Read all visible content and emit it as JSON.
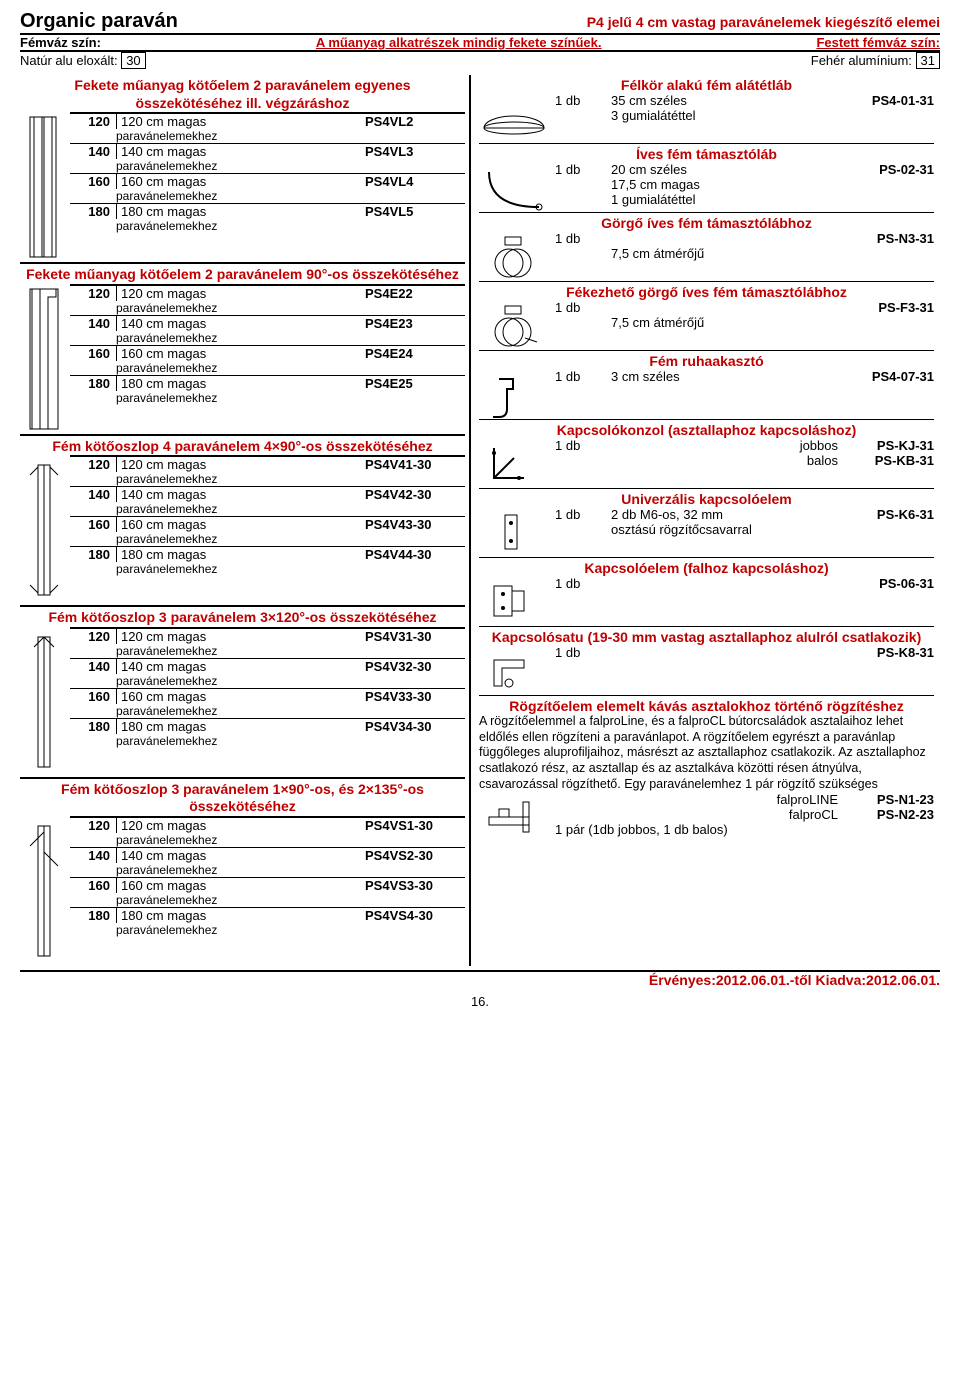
{
  "header": {
    "title": "Organic paraván",
    "subtitle_right": "P4 jelű 4 cm vastag paravánelemek kiegészítő elemei",
    "frame_color_label": "Fémváz szín:",
    "mid_note": "A műanyag alkatrészek mindig fekete színűek.",
    "painted_label": "Festett fémváz szín:",
    "natural_label": "Natúr alu eloxált:",
    "natural_code": "30",
    "white_label": "Fehér alumínium:",
    "white_code": "31"
  },
  "colors": {
    "accent": "#c00000",
    "text": "#000000"
  },
  "p_sub": "paravánelemekhez",
  "sections": {
    "s1": {
      "title": "Fekete műanyag kötőelem 2 paravánelem egyenes összekötéséhez ill. végzáráshoz",
      "rows": [
        {
          "h": "120",
          "d": "120 cm magas",
          "c": "PS4VL2"
        },
        {
          "h": "140",
          "d": "140 cm magas",
          "c": "PS4VL3"
        },
        {
          "h": "160",
          "d": "160 cm magas",
          "c": "PS4VL4"
        },
        {
          "h": "180",
          "d": "180 cm magas",
          "c": "PS4VL5"
        }
      ]
    },
    "s2": {
      "title": "Fekete műanyag kötőelem 2 paravánelem 90°-os összekötéséhez",
      "rows": [
        {
          "h": "120",
          "d": "120 cm magas",
          "c": "PS4E22"
        },
        {
          "h": "140",
          "d": "140 cm magas",
          "c": "PS4E23"
        },
        {
          "h": "160",
          "d": "160 cm magas",
          "c": "PS4E24"
        },
        {
          "h": "180",
          "d": "180 cm magas",
          "c": "PS4E25"
        }
      ]
    },
    "s3": {
      "title": "Fém kötőoszlop 4 paravánelem 4×90°-os összekötéséhez",
      "rows": [
        {
          "h": "120",
          "d": "120 cm magas",
          "c": "PS4V41-30"
        },
        {
          "h": "140",
          "d": "140 cm magas",
          "c": "PS4V42-30"
        },
        {
          "h": "160",
          "d": "160 cm magas",
          "c": "PS4V43-30"
        },
        {
          "h": "180",
          "d": "180 cm magas",
          "c": "PS4V44-30"
        }
      ]
    },
    "s4": {
      "title": "Fém kötőoszlop 3 paravánelem 3×120°-os összekötéséhez",
      "rows": [
        {
          "h": "120",
          "d": "120 cm magas",
          "c": "PS4V31-30"
        },
        {
          "h": "140",
          "d": "140 cm magas",
          "c": "PS4V32-30"
        },
        {
          "h": "160",
          "d": "160 cm magas",
          "c": "PS4V33-30"
        },
        {
          "h": "180",
          "d": "180 cm magas",
          "c": "PS4V34-30"
        }
      ]
    },
    "s5": {
      "title": "Fém kötőoszlop 3 paravánelem 1×90°-os, és 2×135°-os összekötéséhez",
      "rows": [
        {
          "h": "120",
          "d": "120 cm magas",
          "c": "PS4VS1-30"
        },
        {
          "h": "140",
          "d": "140 cm magas",
          "c": "PS4VS2-30"
        },
        {
          "h": "160",
          "d": "160 cm magas",
          "c": "PS4VS3-30"
        },
        {
          "h": "180",
          "d": "180 cm magas",
          "c": "PS4VS4-30"
        }
      ]
    }
  },
  "right": {
    "r1": {
      "title": "Félkör alakú fém alátétláb",
      "q": "1 db",
      "d": "35 cm széles",
      "d2": "3 gumialátéttel",
      "c": "PS4-01-31"
    },
    "r2": {
      "title": "Íves fém támasztóláb",
      "q": "1 db",
      "d": "20 cm széles",
      "d2": "17,5 cm magas",
      "d3": "1 gumialátéttel",
      "c": "PS-02-31"
    },
    "r3": {
      "title": "Görgő íves fém támasztólábhoz",
      "q": "1 db",
      "d2": "7,5 cm átmérőjű",
      "c": "PS-N3-31"
    },
    "r4": {
      "title": "Fékezhető görgő íves fém támasztólábhoz",
      "q": "1 db",
      "d2": "7,5 cm átmérőjű",
      "c": "PS-F3-31"
    },
    "r5": {
      "title": "Fém ruhaakasztó",
      "q": "1 db",
      "d": "3 cm széles",
      "c": "PS4-07-31"
    },
    "r6": {
      "title": "Kapcsolókonzol (asztallaphoz kapcsoláshoz)",
      "q": "1 db",
      "a": "jobbos",
      "ac": "PS-KJ-31",
      "b": "balos",
      "bc": "PS-KB-31"
    },
    "r7": {
      "title": "Univerzális kapcsolóelem",
      "q": "1 db",
      "d": "2 db M6-os, 32 mm",
      "d2": "osztású rögzítőcsavarral",
      "c": "PS-K6-31"
    },
    "r8": {
      "title": "Kapcsolóelem (falhoz kapcsoláshoz)",
      "q": "1 db",
      "c": "PS-06-31"
    },
    "r9": {
      "title": "Kapcsolósatu (19-30 mm vastag asztallaphoz alulról csatlakozik)",
      "q": "1 db",
      "c": "PS-K8-31"
    },
    "r10": {
      "title": "Rögzítőelem elemelt kávás asztalokhoz történő rögzítéshez",
      "para": "A rögzítőelemmel a falproLine, és a falproCL bútorcsaládok asztalaihoz lehet eldőlés ellen rögzíteni a paravánlapot. A rögzítőelem egyrészt a paravánlap függőleges aluprofiljaihoz, másrészt az asztallaphoz csatlakozik. Az asztallaphoz csatlakozó rész, az asztallap és az asztalkáva közötti résen átnyúlva, csavarozással rögzíthető. Egy paravánelemhez 1 pár rögzítő szükséges",
      "a": "falproLINE",
      "ac": "PS-N1-23",
      "b": "falproCL",
      "bc": "PS-N2-23",
      "q": "1 pár (1db jobbos, 1 db balos)"
    }
  },
  "footer": "Érvényes:2012.06.01.-től Kiadva:2012.06.01.",
  "pagenum": "16."
}
